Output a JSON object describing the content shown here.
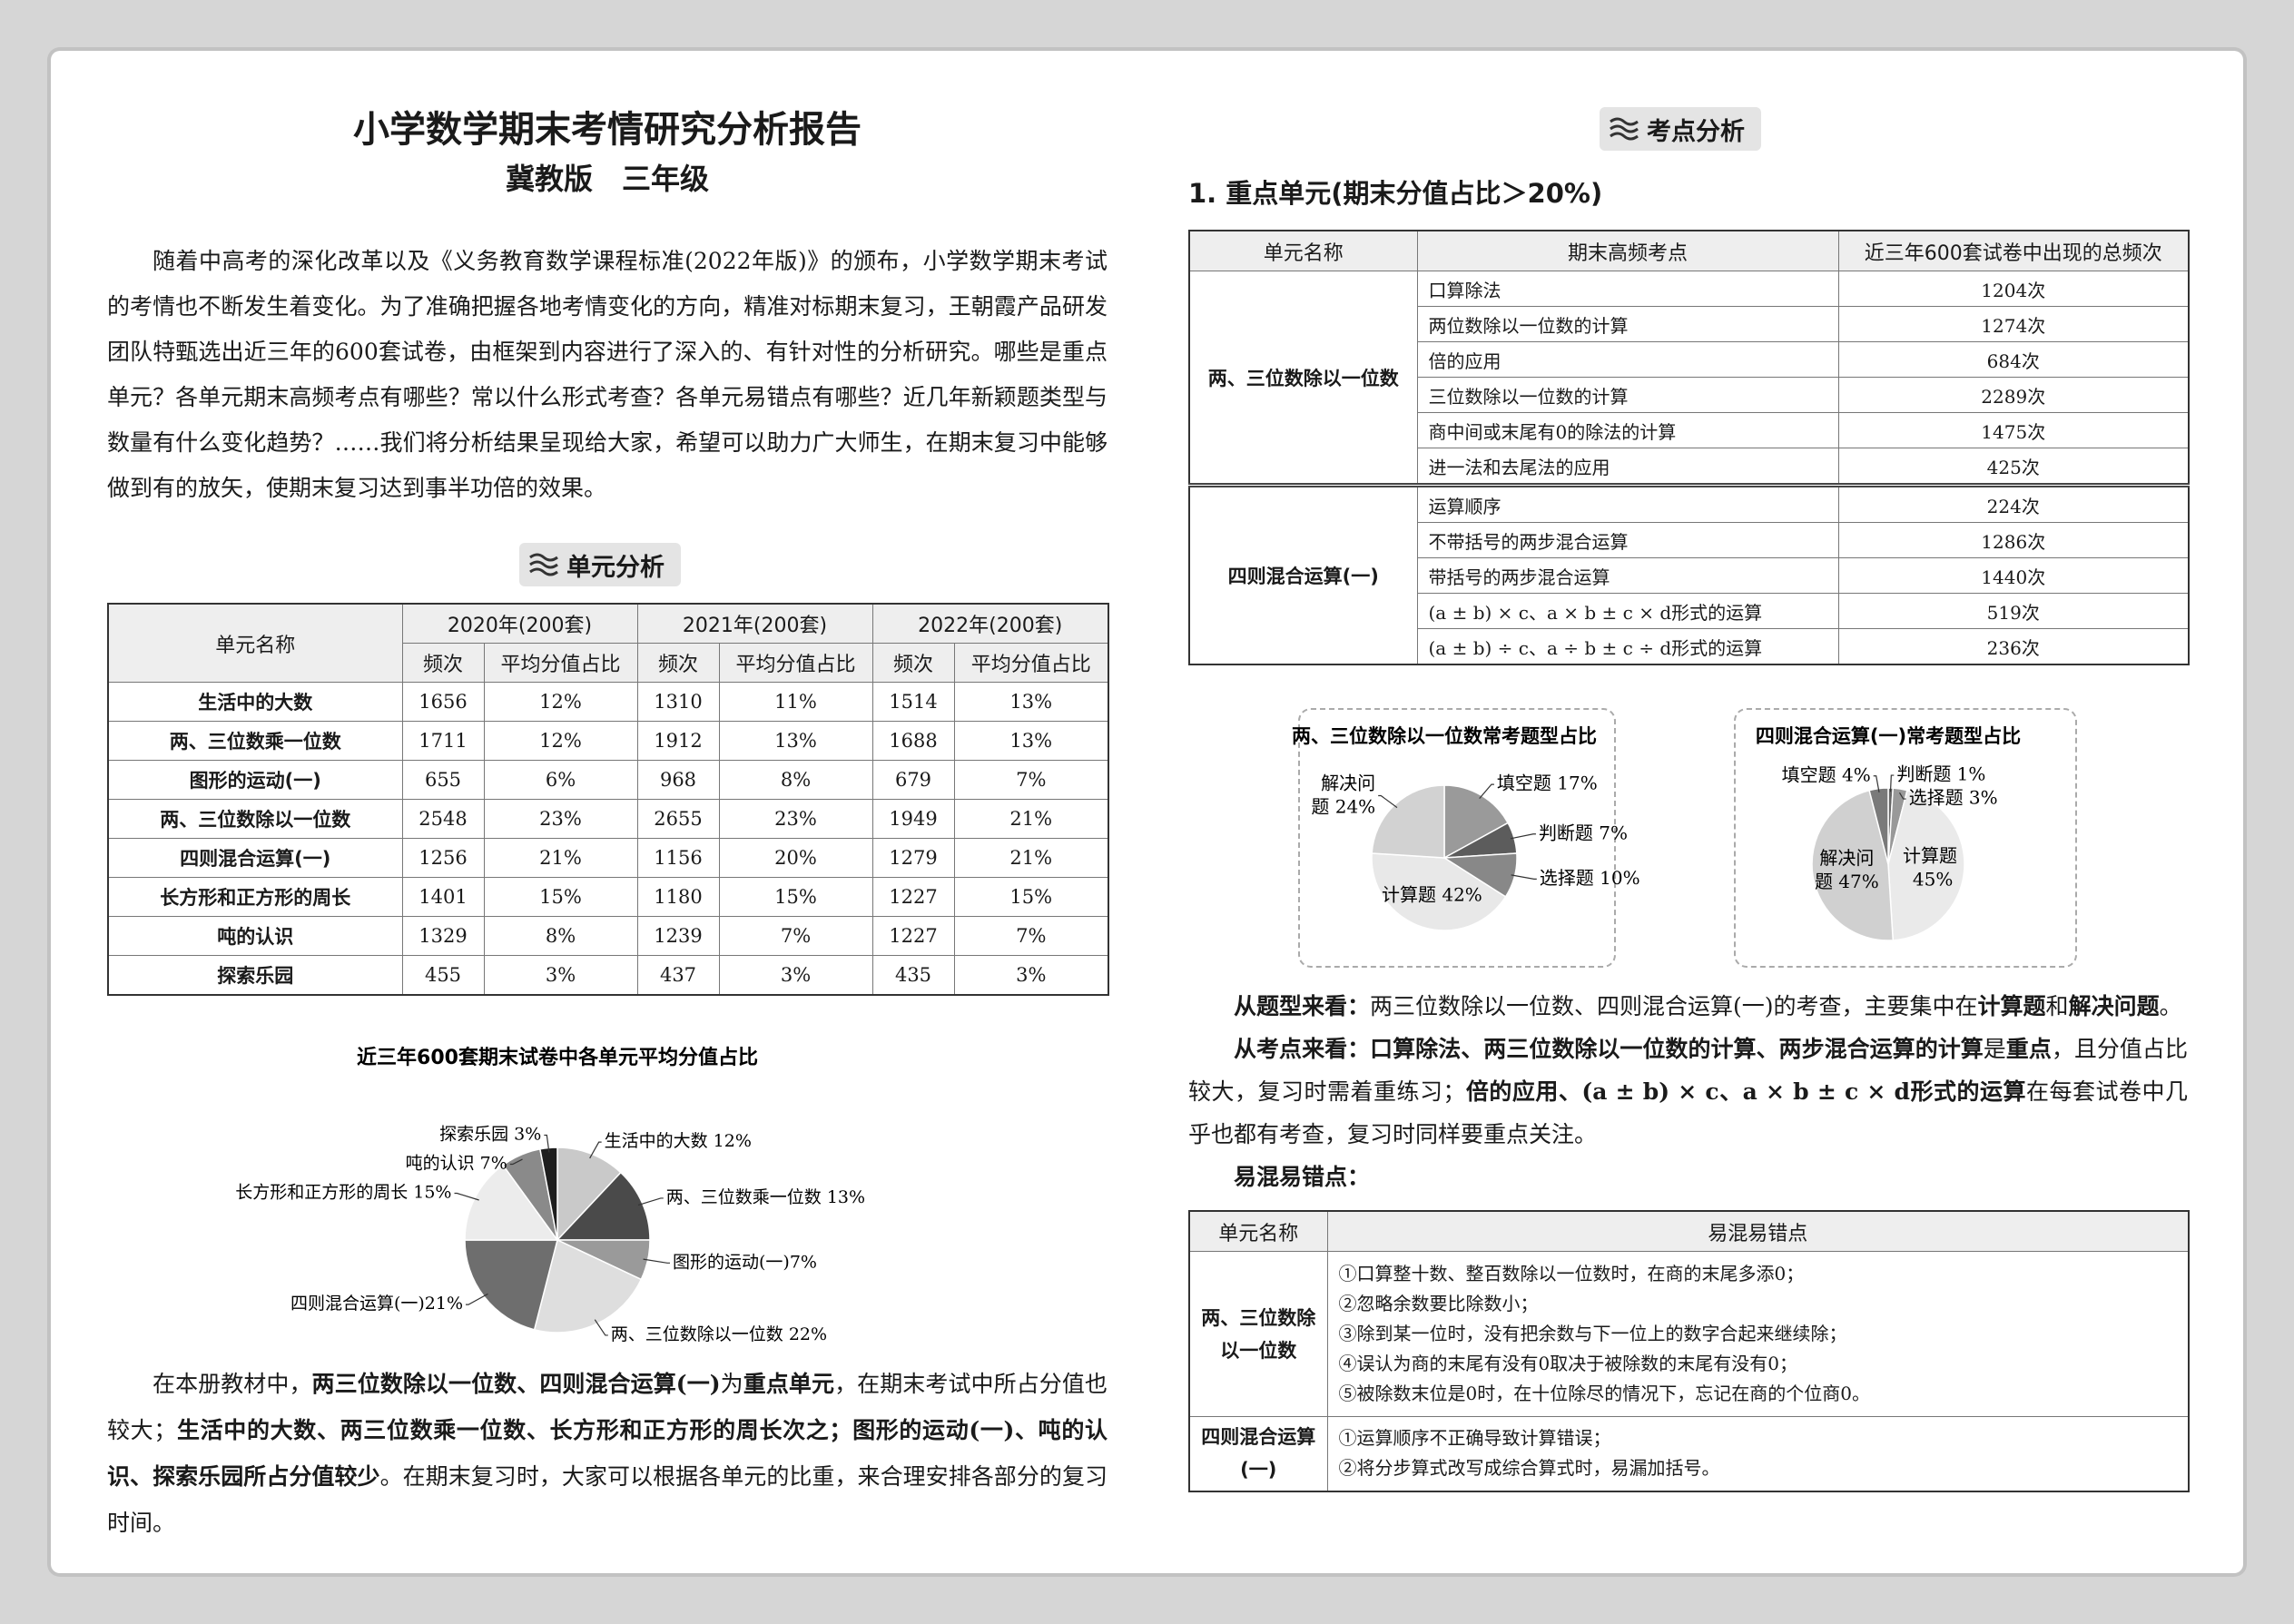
{
  "left": {
    "title": "小学数学期末考情研究分析报告",
    "subtitle": "冀教版　三年级",
    "intro": "随着中高考的深化改革以及《义务教育数学课程标准(2022年版)》的颁布，小学数学期末考试的考情也不断发生着变化。为了准确把握各地考情变化的方向，精准对标期末复习，王朝霞产品研发团队特甄选出近三年的600套试卷，由框架到内容进行了深入的、有针对性的分析研究。哪些是重点单元？各单元期末高频考点有哪些？常以什么形式考查？各单元易错点有哪些？近几年新颖题类型与数量有什么变化趋势？……我们将分析结果呈现给大家，希望可以助力广大师生，在期末复习中能够做到有的放矢，使期末复习达到事半功倍的效果。",
    "section_heading": "单元分析",
    "table": {
      "header": [
        "单元名称",
        "2020年(200套)",
        "2021年(200套)",
        "2022年(200套)"
      ],
      "sub_header": [
        "频次",
        "平均分值占比",
        "频次",
        "平均分值占比",
        "频次",
        "平均分值占比"
      ],
      "rows": [
        [
          "生活中的大数",
          "1656",
          "12%",
          "1310",
          "11%",
          "1514",
          "13%"
        ],
        [
          "两、三位数乘一位数",
          "1711",
          "12%",
          "1912",
          "13%",
          "1688",
          "13%"
        ],
        [
          "图形的运动(一)",
          "655",
          "6%",
          "968",
          "8%",
          "679",
          "7%"
        ],
        [
          "两、三位数除以一位数",
          "2548",
          "23%",
          "2655",
          "23%",
          "1949",
          "21%"
        ],
        [
          "四则混合运算(一)",
          "1256",
          "21%",
          "1156",
          "20%",
          "1279",
          "21%"
        ],
        [
          "长方形和正方形的周长",
          "1401",
          "15%",
          "1180",
          "15%",
          "1227",
          "15%"
        ],
        [
          "吨的认识",
          "1329",
          "8%",
          "1239",
          "7%",
          "1227",
          "7%"
        ],
        [
          "探索乐园",
          "455",
          "3%",
          "437",
          "3%",
          "435",
          "3%"
        ]
      ]
    },
    "conclusion": {
      "runs": [
        {
          "text": "在本册教材中，",
          "bold": false
        },
        {
          "text": "两三位数除以一位数、四则混合运算(一)",
          "bold": true
        },
        {
          "text": "为",
          "bold": false
        },
        {
          "text": "重点单元",
          "bold": true
        },
        {
          "text": "，在期末考试中所占分值也较大；",
          "bold": false
        },
        {
          "text": "生活中的大数、两三位数乘一位数、长方形和正方形的周长次之；图形的运动(一)、吨的认识、探索乐园所占分值较少",
          "bold": true
        },
        {
          "text": "。在期末复习时，大家可以根据各单元的比重，来合理安排各部分的复习时间。",
          "bold": false
        }
      ]
    }
  },
  "right": {
    "section_heading": "考点分析",
    "subheading": "1. 重点单元(期末分值占比＞20%)",
    "table": {
      "header": [
        "单元名称",
        "期末高频考点",
        "近三年600套试卷中出现的总频次"
      ],
      "groups": [
        {
          "unit": "两、三位数除以一位数",
          "rows": [
            [
              "口算除法",
              "1204次"
            ],
            [
              "两位数除以一位数的计算",
              "1274次"
            ],
            [
              "倍的应用",
              "684次"
            ],
            [
              "三位数除以一位数的计算",
              "2289次"
            ],
            [
              "商中间或末尾有0的除法的计算",
              "1475次"
            ],
            [
              "进一法和去尾法的应用",
              "425次"
            ]
          ]
        },
        {
          "unit": "四则混合运算(一)",
          "rows": [
            [
              "运算顺序",
              "224次"
            ],
            [
              "不带括号的两步混合运算",
              "1286次"
            ],
            [
              "带括号的两步混合运算",
              "1440次"
            ],
            [
              "(a ± b) × c、a × b ± c × d形式的运算",
              "519次"
            ],
            [
              "(a ± b) ÷ c、a ÷ b ± c ÷ d形式的运算",
              "236次"
            ]
          ]
        }
      ]
    },
    "paragraphs": [
      {
        "runs": [
          {
            "text": "从题型来看：",
            "bold": true
          },
          {
            "text": "两三位数除以一位数、四则混合运算(一)的考查，主要集中在",
            "bold": false
          },
          {
            "text": "计算题",
            "bold": true
          },
          {
            "text": "和",
            "bold": false
          },
          {
            "text": "解决问题",
            "bold": true
          },
          {
            "text": "。",
            "bold": false
          }
        ]
      },
      {
        "runs": [
          {
            "text": "从考点来看：口算除法、两三位数除以一位数的计算、两步混合运算的计算",
            "bold": true
          },
          {
            "text": "是",
            "bold": false
          },
          {
            "text": "重点",
            "bold": true
          },
          {
            "text": "，且分值占比较大，复习时需着重练习；",
            "bold": false
          },
          {
            "text": "倍的应用、(a ± b) × c、a × b ± c × d形式的运算",
            "bold": true
          },
          {
            "text": "在每套试卷中几乎也都有考查，复习时同样要重点关注。",
            "bold": false
          }
        ]
      },
      {
        "runs": [
          {
            "text": "易混易错点：",
            "bold": true
          }
        ]
      }
    ],
    "errors_table": {
      "header": [
        "单元名称",
        "易混易错点"
      ],
      "rows": [
        {
          "unit": "两、三位数除以一位数",
          "items": [
            "①口算整十数、整百数除以一位数时，在商的末尾多添0；",
            "②忽略余数要比除数小；",
            "③除到某一位时，没有把余数与下一位上的数字合起来继续除；",
            "④误认为商的末尾有没有0取决于被除数的末尾有没有0；",
            "⑤被除数末位是0时，在十位除尽的情况下，忘记在商的个位商0。"
          ]
        },
        {
          "unit": "四则混合运算(一)",
          "items": [
            "①运算顺序不正确导致计算错误；",
            "②将分步算式改写成综合算式时，易漏加括号。"
          ]
        }
      ]
    }
  },
  "chart_data": [
    {
      "type": "pie",
      "title": "近三年600套期末试卷中各单元平均分值占比",
      "values": [
        12,
        13,
        7,
        22,
        21,
        15,
        7,
        3
      ],
      "value_labels": [
        "生活中的大数 12%",
        "两、三位数乘一位数 13%",
        "图形的运动(一)7%",
        "两、三位数除以一位数 22%",
        "四则混合运算(一)21%",
        "长方形和正方形的周长 15%",
        "吨的认识 7%",
        "探索乐园 3%"
      ],
      "colors": [
        "#c9c9c9",
        "#4a4a4a",
        "#9a9a9a",
        "#dedede",
        "#6e6e6e",
        "#ececec",
        "#8a8a8a",
        "#1e1e1e"
      ]
    },
    {
      "type": "pie",
      "title": "两、三位数除以一位数常考题型占比",
      "values": [
        17,
        7,
        10,
        42,
        24
      ],
      "value_labels": [
        "填空题 17%",
        "判断题 7%",
        "选择题 10%",
        "计算题 42%",
        "解决问题 24%"
      ],
      "colors": [
        "#9a9a9a",
        "#5c5c5c",
        "#888888",
        "#e8e8e8",
        "#d2d2d2"
      ]
    },
    {
      "type": "pie",
      "title": "四则混合运算(一)常考题型占比",
      "values": [
        1,
        3,
        45,
        47,
        4
      ],
      "value_labels": [
        "判断题 1%",
        "选择题 3%",
        "计算题 45%",
        "解决问题 47%",
        "填空题 4%"
      ],
      "colors": [
        "#666666",
        "#999999",
        "#eaeaea",
        "#d0d0d0",
        "#7a7a7a"
      ]
    }
  ]
}
